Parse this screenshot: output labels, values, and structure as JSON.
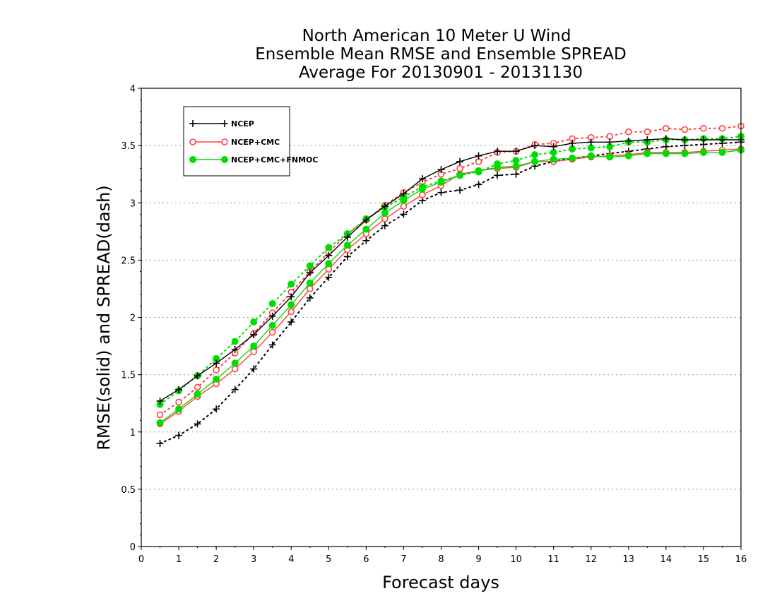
{
  "chart_data": {
    "type": "line",
    "title_lines": [
      "North American 10 Meter U Wind",
      "Ensemble Mean RMSE and Ensemble SPREAD",
      "Average For 20130901 - 20131130"
    ],
    "xlabel": "Forecast days",
    "ylabel": "RMSE(solid) and SPREAD(dash)",
    "xlim": [
      0,
      16
    ],
    "ylim": [
      0,
      4
    ],
    "x_ticks": [
      "0",
      "1",
      "2",
      "3",
      "4",
      "5",
      "6",
      "7",
      "8",
      "9",
      "10",
      "11",
      "12",
      "13",
      "14",
      "15",
      "16"
    ],
    "y_ticks": [
      "0",
      "0.5",
      "1",
      "1.5",
      "2",
      "2.5",
      "3",
      "3.5",
      "4"
    ],
    "grid": "horizontal dotted",
    "legend_position": "top-left",
    "x": [
      0.5,
      1,
      1.5,
      2,
      2.5,
      3,
      3.5,
      4,
      4.5,
      5,
      5.5,
      6,
      6.5,
      7,
      7.5,
      8,
      8.5,
      9,
      9.5,
      10,
      10.5,
      11,
      11.5,
      12,
      12.5,
      13,
      13.5,
      14,
      14.5,
      15,
      15.5,
      16
    ],
    "series": [
      {
        "name": "NCEP",
        "color": "#000000",
        "marker": "plus",
        "rmse": [
          1.27,
          1.37,
          1.49,
          1.6,
          1.72,
          1.85,
          2.01,
          2.18,
          2.39,
          2.54,
          2.7,
          2.85,
          2.97,
          3.08,
          3.21,
          3.29,
          3.36,
          3.41,
          3.45,
          3.45,
          3.5,
          3.49,
          3.52,
          3.53,
          3.53,
          3.54,
          3.55,
          3.56,
          3.55,
          3.55,
          3.55,
          3.55
        ],
        "spread": [
          0.9,
          0.97,
          1.07,
          1.2,
          1.37,
          1.55,
          1.76,
          1.96,
          2.17,
          2.35,
          2.53,
          2.67,
          2.8,
          2.9,
          3.02,
          3.09,
          3.11,
          3.16,
          3.24,
          3.25,
          3.32,
          3.36,
          3.39,
          3.41,
          3.43,
          3.45,
          3.47,
          3.49,
          3.5,
          3.51,
          3.52,
          3.53
        ]
      },
      {
        "name": "NCEP+CMC",
        "color": "#ff4040",
        "marker": "open-circle",
        "rmse": [
          1.07,
          1.18,
          1.31,
          1.42,
          1.55,
          1.7,
          1.87,
          2.05,
          2.25,
          2.42,
          2.59,
          2.73,
          2.86,
          2.97,
          3.07,
          3.15,
          3.25,
          3.28,
          3.3,
          3.31,
          3.36,
          3.36,
          3.38,
          3.4,
          3.41,
          3.42,
          3.44,
          3.44,
          3.44,
          3.45,
          3.46,
          3.47
        ],
        "spread": [
          1.15,
          1.26,
          1.39,
          1.54,
          1.69,
          1.86,
          2.04,
          2.22,
          2.4,
          2.57,
          2.73,
          2.85,
          2.98,
          3.09,
          3.18,
          3.25,
          3.3,
          3.36,
          3.44,
          3.45,
          3.51,
          3.52,
          3.56,
          3.57,
          3.58,
          3.62,
          3.62,
          3.65,
          3.64,
          3.65,
          3.65,
          3.67
        ]
      },
      {
        "name": "NCEP+CMC+FNMOC",
        "color": "#00dd00",
        "marker": "filled-circle",
        "rmse": [
          1.08,
          1.2,
          1.33,
          1.46,
          1.6,
          1.75,
          1.93,
          2.11,
          2.3,
          2.47,
          2.63,
          2.77,
          2.91,
          3.02,
          3.12,
          3.18,
          3.24,
          3.28,
          3.31,
          3.32,
          3.36,
          3.38,
          3.39,
          3.41,
          3.4,
          3.41,
          3.43,
          3.43,
          3.43,
          3.44,
          3.44,
          3.46
        ],
        "spread": [
          1.24,
          1.36,
          1.49,
          1.64,
          1.79,
          1.96,
          2.12,
          2.29,
          2.45,
          2.61,
          2.73,
          2.86,
          2.96,
          3.05,
          3.14,
          3.19,
          3.24,
          3.27,
          3.34,
          3.37,
          3.42,
          3.44,
          3.47,
          3.48,
          3.49,
          3.53,
          3.53,
          3.55,
          3.55,
          3.56,
          3.56,
          3.58
        ]
      }
    ]
  }
}
